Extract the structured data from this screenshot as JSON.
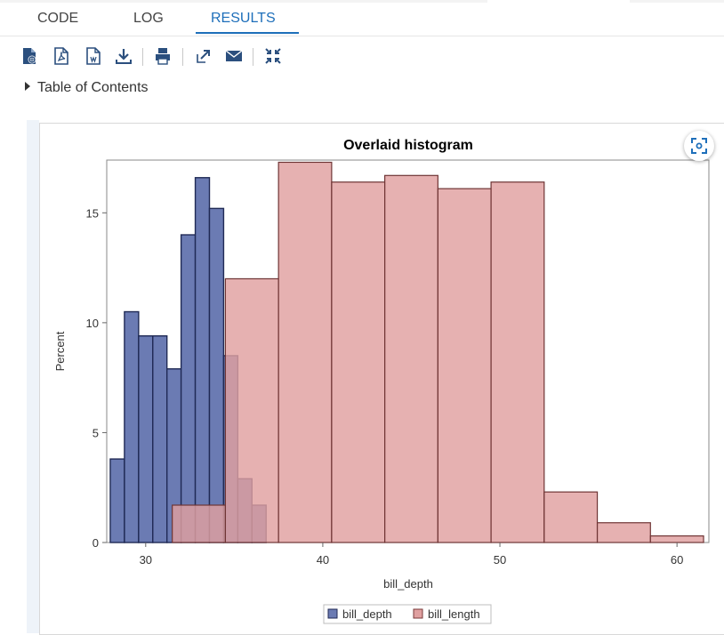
{
  "tabs": [
    {
      "label": "CODE",
      "active": false
    },
    {
      "label": "LOG",
      "active": false
    },
    {
      "label": "RESULTS",
      "active": true
    }
  ],
  "toolbar": {
    "icons": [
      "html-doc-icon",
      "pdf-doc-icon",
      "word-doc-icon",
      "download-icon",
      "print-icon",
      "open-new-window-icon",
      "email-icon",
      "collapse-icon"
    ]
  },
  "toc": {
    "label": "Table of Contents"
  },
  "colors": {
    "accent": "#1e6fba",
    "bill_depth": "#6b7bb3",
    "bill_length": "#e0a0a0",
    "overlap": "#9d4e6e"
  },
  "chart_data": {
    "type": "bar",
    "title": "Overlaid histogram",
    "xlabel": "bill_depth",
    "ylabel": "Percent",
    "xlim": [
      27.8,
      61.8
    ],
    "ylim": [
      0,
      17.4
    ],
    "xticks": [
      30,
      40,
      50,
      60
    ],
    "yticks": [
      0,
      5,
      10,
      15
    ],
    "legend_position": "bottom",
    "series": [
      {
        "name": "bill_depth",
        "bin_width": 0.8,
        "bin_starts": [
          28.0,
          28.8,
          29.6,
          30.4,
          31.2,
          32.0,
          32.8,
          33.6,
          34.4,
          35.2,
          36.0
        ],
        "values": [
          3.8,
          10.5,
          9.4,
          9.4,
          7.9,
          14.0,
          16.6,
          15.2,
          8.5,
          2.9,
          1.7
        ]
      },
      {
        "name": "bill_length",
        "bin_width": 3.0,
        "bin_starts": [
          31.5,
          34.5,
          37.5,
          40.5,
          43.5,
          46.5,
          49.5,
          52.5,
          55.5,
          58.5
        ],
        "values": [
          1.7,
          12.0,
          17.3,
          16.4,
          16.7,
          16.1,
          16.4,
          2.3,
          0.9,
          0.3
        ]
      }
    ]
  }
}
